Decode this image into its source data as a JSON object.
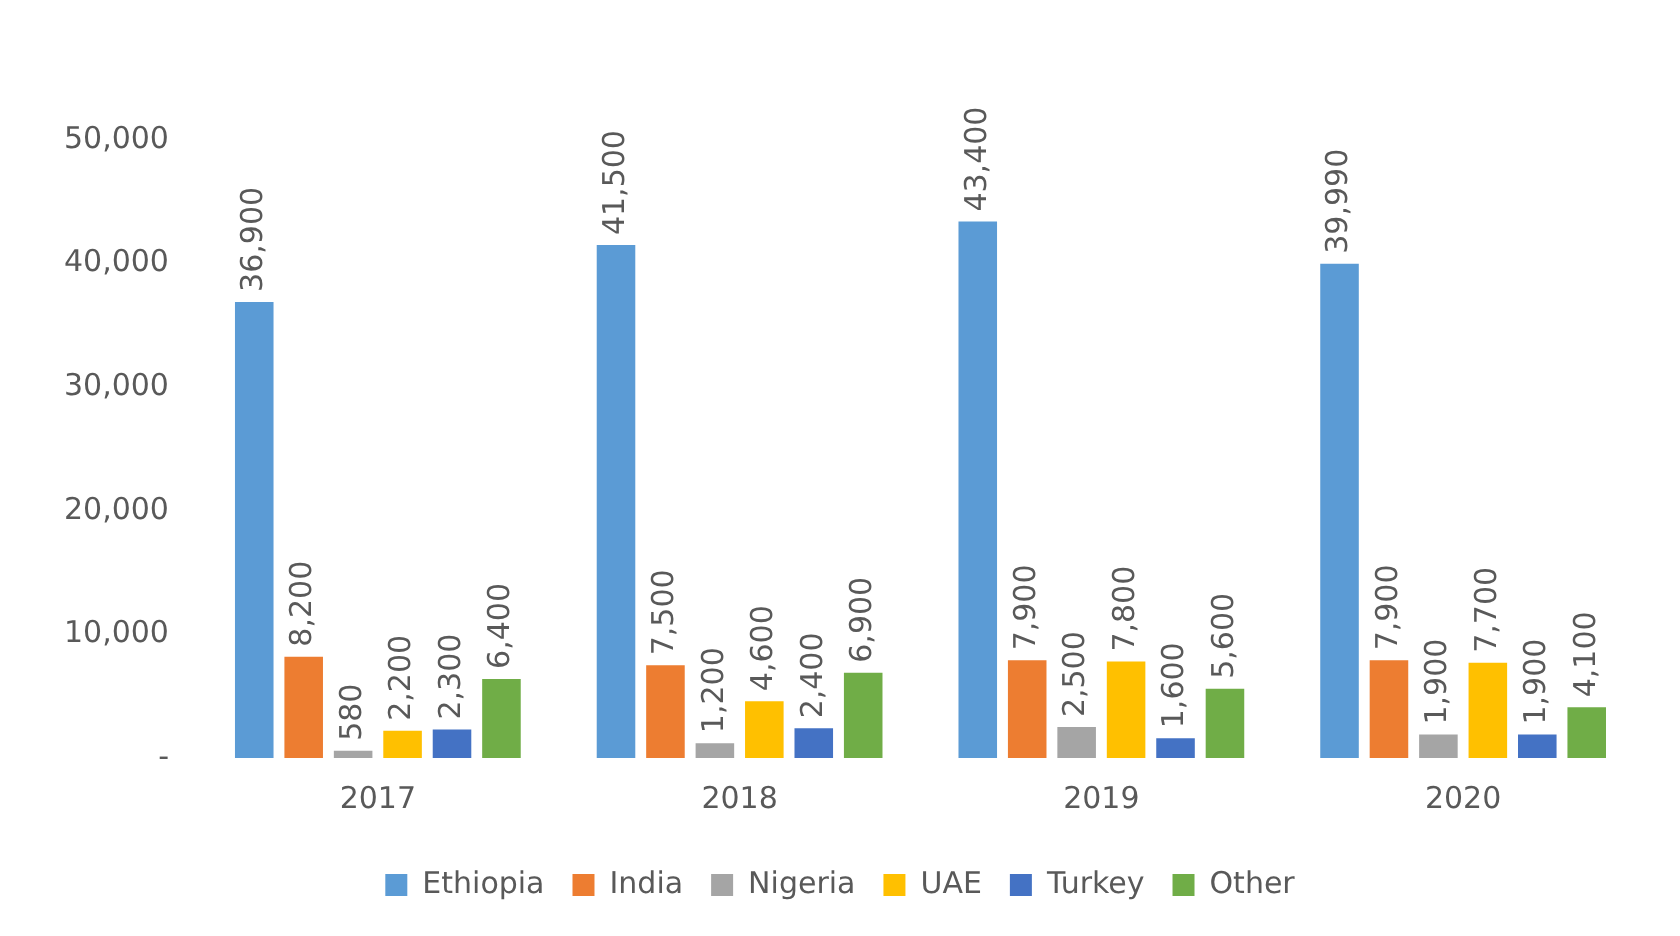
{
  "chart_data": {
    "type": "bar",
    "categories": [
      "2017",
      "2018",
      "2019",
      "2020"
    ],
    "series": [
      {
        "name": "Ethiopia",
        "color": "#5b9bd5",
        "values": [
          36900,
          41500,
          43400,
          39990
        ],
        "value_labels": [
          "36,900",
          "41,500",
          "43,400",
          "39,990"
        ]
      },
      {
        "name": "India",
        "color": "#ed7d31",
        "values": [
          8200,
          7500,
          7900,
          7900
        ],
        "value_labels": [
          "8,200",
          "7,500",
          "7,900",
          "7,900"
        ]
      },
      {
        "name": "Nigeria",
        "color": "#a5a5a5",
        "values": [
          580,
          1200,
          2500,
          1900
        ],
        "value_labels": [
          "580",
          "1,200",
          "2,500",
          "1,900"
        ]
      },
      {
        "name": "UAE",
        "color": "#ffc000",
        "values": [
          2200,
          4600,
          7800,
          7700
        ],
        "value_labels": [
          "2,200",
          "4,600",
          "7,800",
          "7,700"
        ]
      },
      {
        "name": "Turkey",
        "color": "#4472c4",
        "values": [
          2300,
          2400,
          1600,
          1900
        ],
        "value_labels": [
          "2,300",
          "2,400",
          "1,600",
          "1,900"
        ]
      },
      {
        "name": "Other",
        "color": "#70ad47",
        "values": [
          6400,
          6900,
          5600,
          4100
        ],
        "value_labels": [
          "6,400",
          "6,900",
          "5,600",
          "4,100"
        ]
      }
    ],
    "ylim": [
      0,
      50000
    ],
    "yticks": [
      {
        "value": 0,
        "label": "-"
      },
      {
        "value": 10000,
        "label": "10,000"
      },
      {
        "value": 20000,
        "label": "20,000"
      },
      {
        "value": 30000,
        "label": "30,000"
      },
      {
        "value": 40000,
        "label": "40,000"
      },
      {
        "value": 50000,
        "label": "50,000"
      }
    ],
    "grid": false,
    "legend": "bottom"
  }
}
